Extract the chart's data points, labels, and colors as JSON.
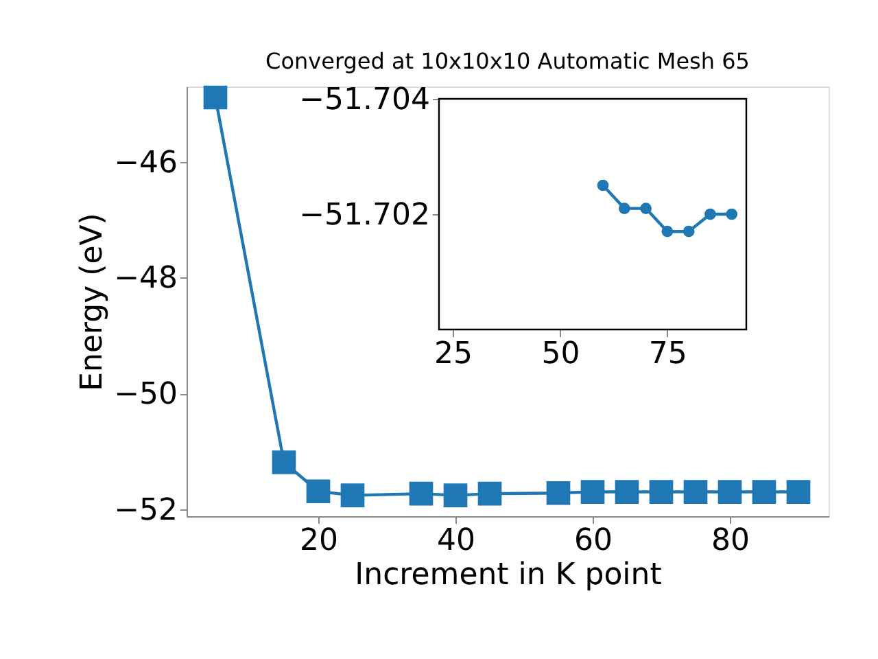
{
  "chart_data": [
    {
      "type": "line",
      "title": "Converged at 10x10x10 Automatic Mesh 65",
      "xlabel": "Increment in K point",
      "ylabel": "Energy (eV)",
      "x": [
        5,
        15,
        20,
        25,
        35,
        40,
        45,
        55,
        60,
        65,
        70,
        75,
        80,
        85,
        90
      ],
      "series": [
        {
          "color": "#1f77b4",
          "values": [
            -44.89,
            -51.19,
            -51.69,
            -51.76,
            -51.73,
            -51.76,
            -51.73,
            -51.72,
            -51.7,
            -51.7,
            -51.7,
            -51.7,
            -51.7,
            -51.7,
            -51.7
          ]
        }
      ],
      "marker": "square",
      "xlim": [
        0.8,
        94.4
      ],
      "ylim": [
        -52.12,
        -44.7
      ],
      "xticks": [
        20,
        40,
        60,
        80
      ],
      "yticks": [
        -52,
        -50,
        -48,
        -46
      ],
      "grid": false
    },
    {
      "type": "line",
      "x": [
        60,
        65,
        70,
        75,
        80,
        85,
        90
      ],
      "series": [
        {
          "color": "#1f77b4",
          "values": [
            -51.7025,
            -51.7021,
            -51.7021,
            -51.7017,
            -51.7017,
            -51.702,
            -51.702
          ]
        }
      ],
      "marker": "circle",
      "xlim": [
        21.8,
        93.4
      ],
      "ylim": [
        -51.7,
        -51.704
      ],
      "xticks": [
        25,
        50,
        75
      ],
      "yticks": [
        -51.704,
        -51.702
      ],
      "grid": false
    }
  ]
}
